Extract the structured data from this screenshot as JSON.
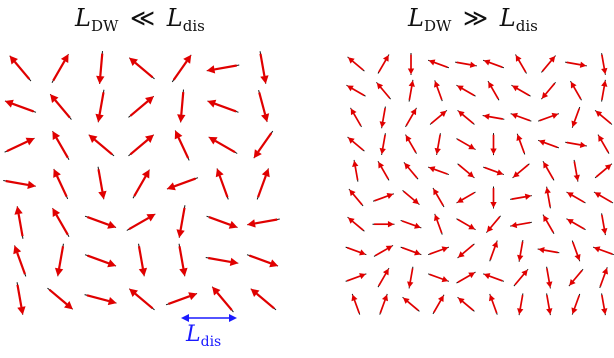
{
  "titles": {
    "left": {
      "symbol": "L",
      "sub": "DW",
      "relation": "≪",
      "rhs_symbol": "L",
      "rhs_sub": "dis"
    },
    "right": {
      "symbol": "L",
      "sub": "DW",
      "relation": "≫",
      "rhs_symbol": "L",
      "rhs_sub": "dis"
    }
  },
  "scale_bar": {
    "symbol": "L",
    "sub": "dis",
    "color": "#1a1aff"
  },
  "colors": {
    "arrow": "#e00000",
    "axis_line": "#111111"
  },
  "fields": [
    {
      "name": "sparse-field",
      "rows": 7,
      "cols": 7,
      "angles_deg": [
        -130,
        -60,
        95,
        -140,
        -55,
        170,
        80,
        -160,
        -130,
        100,
        -40,
        95,
        -160,
        75,
        -25,
        -120,
        -140,
        -40,
        -115,
        -150,
        125,
        10,
        -115,
        80,
        -60,
        160,
        -110,
        -70,
        -100,
        -120,
        20,
        -30,
        100,
        20,
        170,
        -110,
        100,
        20,
        80,
        80,
        10,
        20,
        80,
        40,
        15,
        -140,
        -20,
        -130,
        -140
      ]
    },
    {
      "name": "dense-field",
      "rows": 10,
      "cols": 10,
      "angles_deg": [
        -140,
        -60,
        90,
        -160,
        10,
        -160,
        -120,
        -50,
        10,
        80,
        -150,
        -130,
        -80,
        -110,
        -150,
        -120,
        -150,
        130,
        -120,
        -80,
        -120,
        100,
        -60,
        -40,
        -140,
        -170,
        -160,
        -20,
        110,
        -140,
        -140,
        100,
        -120,
        100,
        30,
        90,
        -110,
        -160,
        10,
        -120,
        -100,
        -120,
        -130,
        -160,
        40,
        20,
        140,
        -120,
        80,
        -40,
        -130,
        -20,
        40,
        -120,
        150,
        90,
        -10,
        -100,
        -150,
        -150,
        -140,
        0,
        20,
        -110,
        30,
        130,
        170,
        -120,
        -150,
        80,
        20,
        -30,
        20,
        -20,
        140,
        -70,
        100,
        -170,
        70,
        -160,
        -20,
        -60,
        100,
        20,
        -30,
        -160,
        -50,
        80,
        130,
        -70,
        -110,
        -70,
        -140,
        -60,
        -140,
        -110,
        100,
        80,
        110,
        80
      ]
    }
  ]
}
